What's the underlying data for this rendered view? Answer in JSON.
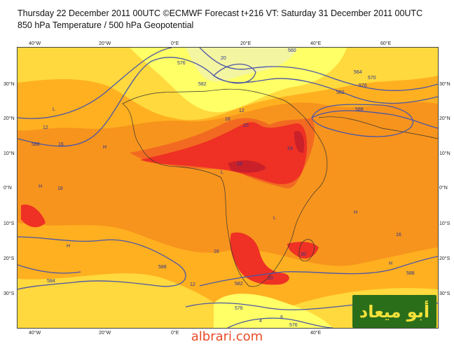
{
  "header": {
    "line1": "Thursday 22 December 2011 00UTC ©ECMWF Forecast t+216 VT: Saturday 31 December 2011 00UTC",
    "line2": "850 hPa Temperature / 500 hPa Geopotential"
  },
  "axes": {
    "lon_labels": [
      "40°W",
      "20°W",
      "0°E",
      "20°E",
      "40°E",
      "60°E"
    ],
    "lat_labels": [
      "30°N",
      "20°N",
      "10°N",
      "0°N",
      "10°S",
      "20°S",
      "30°S"
    ]
  },
  "contour_labels": [
    "560",
    "564",
    "570",
    "576",
    "582",
    "588",
    "588",
    "582",
    "576",
    "576",
    "582",
    "588",
    "584",
    "576",
    "588"
  ],
  "temperature_labels": [
    "12",
    "16",
    "16",
    "12",
    "20",
    "24",
    "24",
    "16",
    "20",
    "20",
    "16",
    "12",
    "16",
    "20",
    "8",
    "4"
  ],
  "pressure_marks": [
    "H",
    "H",
    "H",
    "L",
    "L",
    "H",
    "L",
    "H"
  ],
  "colors": {
    "cold": "#ffff66",
    "cool": "#ffd93d",
    "mild": "#ffb020",
    "warm": "#f7941d",
    "hot": "#f26a21",
    "very_hot": "#ee3124",
    "hottest": "#c9202a",
    "contour": "#4a55a8"
  },
  "watermark": {
    "arabic": "أبو ميعاد",
    "site": "albrari.com"
  }
}
